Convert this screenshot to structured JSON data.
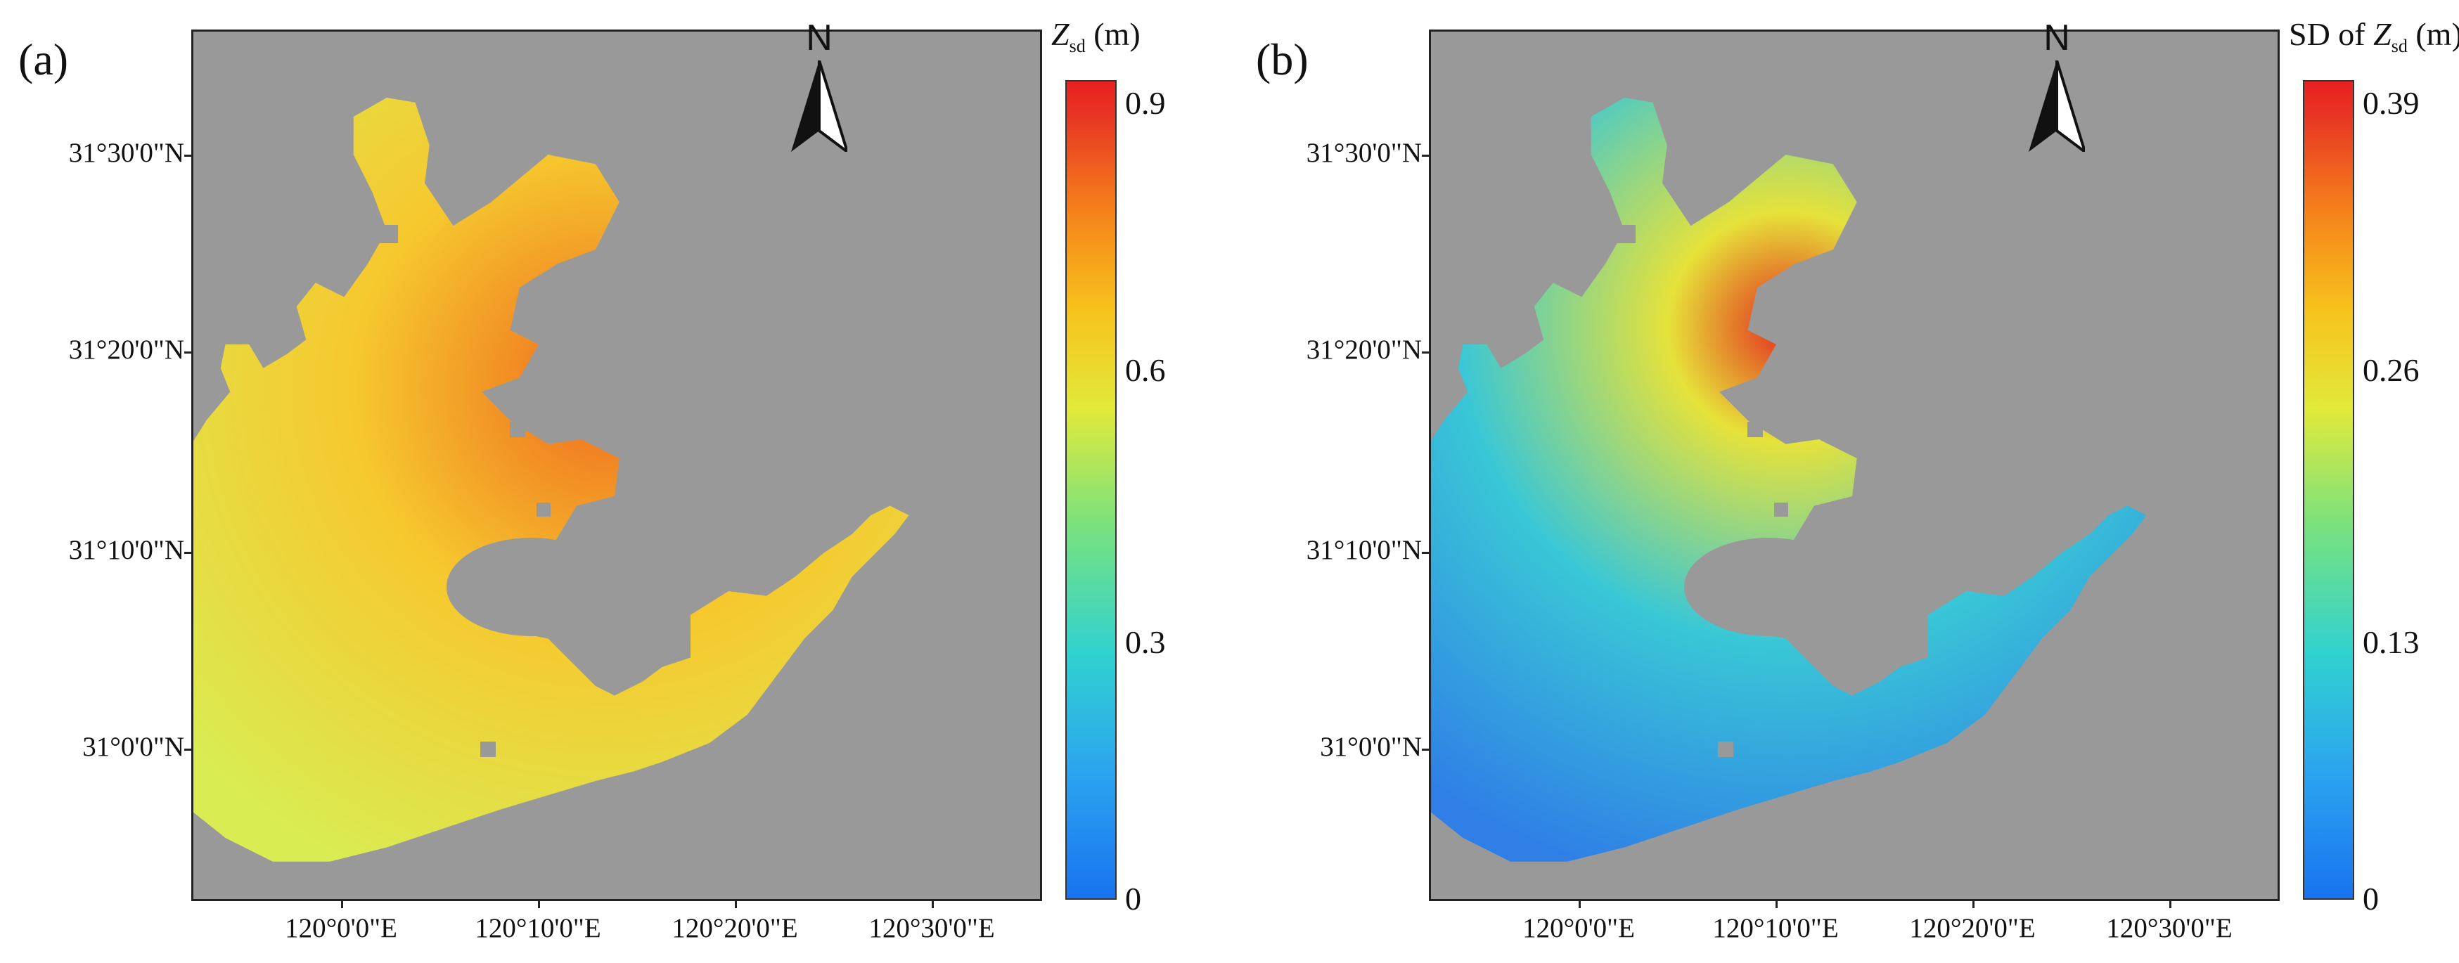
{
  "panels": [
    {
      "label": "(a)",
      "north_label": "N",
      "colorbar": {
        "title_var": "Z",
        "title_sub": "sd",
        "title_prefix": "",
        "title_unit": " (m)",
        "ticks": [
          "0",
          "0.3",
          "0.6",
          "0.9"
        ],
        "range": [
          0,
          0.9
        ]
      },
      "lat_labels": [
        "31°30'0\"N",
        "31°20'0\"N",
        "31°10'0\"N",
        "31°0'0\"N"
      ],
      "lon_labels": [
        "120°0'0\"E",
        "120°10'0\"E",
        "120°20'0\"E",
        "120°30'0\"E"
      ],
      "palette": {
        "background": "#999999",
        "lake_low": "#d9ec52",
        "lake_mid": "#f6c82e",
        "lake_high": "#ef6a1e",
        "lake_peak": "#e4391c"
      }
    },
    {
      "label": "(b)",
      "north_label": "N",
      "colorbar": {
        "title_var": "Z",
        "title_sub": "sd",
        "title_prefix": "SD of ",
        "title_unit": " (m)",
        "ticks": [
          "0",
          "0.13",
          "0.26",
          "0.39"
        ],
        "range": [
          0,
          0.39
        ]
      },
      "lat_labels": [
        "31°30'0\"N",
        "31°20'0\"N",
        "31°10'0\"N",
        "31°0'0\"N"
      ],
      "lon_labels": [
        "120°0'0\"E",
        "120°10'0\"E",
        "120°20'0\"E",
        "120°30'0\"E"
      ],
      "palette": {
        "background": "#999999",
        "lake_low": "#2f7fe6",
        "lake_mid": "#39c7d6",
        "lake_high": "#e6e23a",
        "lake_peak": "#e32a1e"
      }
    }
  ]
}
